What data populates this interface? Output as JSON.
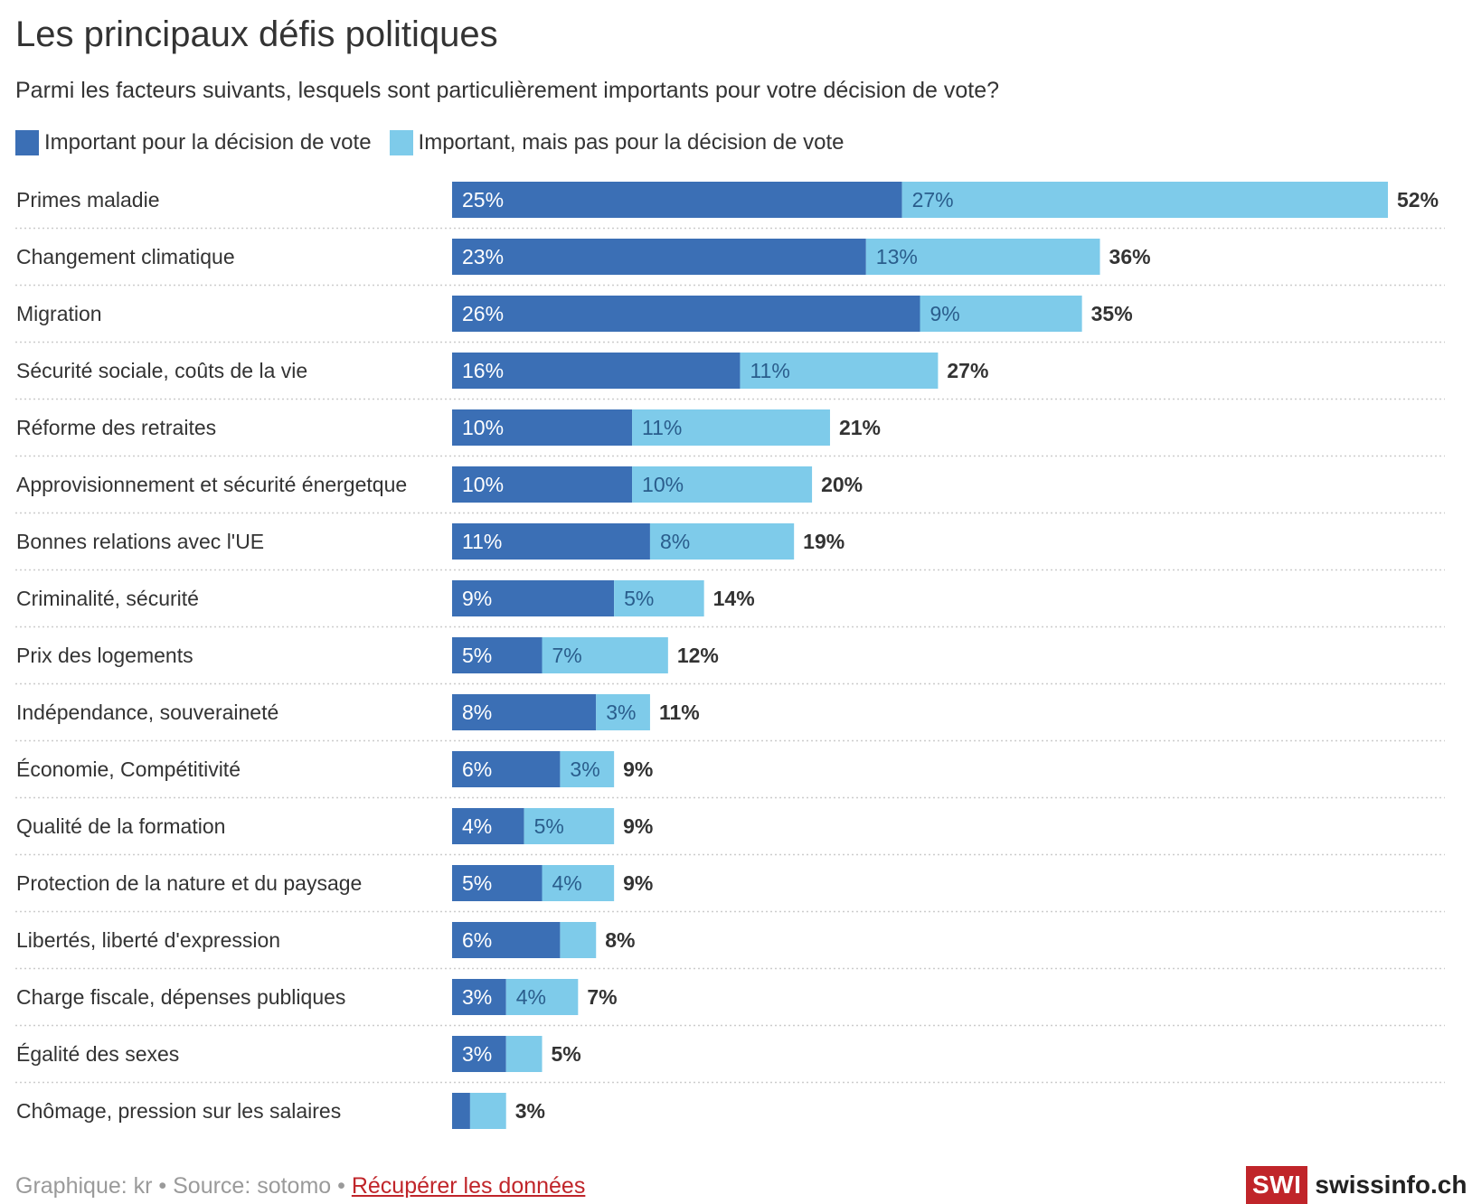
{
  "colors": {
    "primary": "#3b6fb5",
    "secondary": "#7ecbea",
    "grid": "#cccccc"
  },
  "chart_data": {
    "type": "bar",
    "orientation": "horizontal",
    "stacked": true,
    "title": "Les principaux défis politiques",
    "subtitle": "Parmi les facteurs suivants, lesquels sont particulièrement importants pour votre décision de vote?",
    "legend": [
      "Important pour la décision de vote",
      "Important, mais pas pour la décision de vote"
    ],
    "legend_position": "top-left",
    "categories": [
      "Primes maladie",
      "Changement climatique",
      "Migration",
      "Sécurité sociale, coûts de la vie",
      "Réforme des retraites",
      "Approvisionnement et sécurité énergetque",
      "Bonnes relations avec l'UE",
      "Criminalité, sécurité",
      "Prix des logements",
      "Indépendance, souveraineté",
      "Économie, Compétitivité",
      "Qualité de la formation",
      "Protection de la nature et du paysage",
      "Libertés, liberté d'expression",
      "Charge fiscale, dépenses publiques",
      "Égalité des sexes",
      "Chômage, pression sur les salaires"
    ],
    "series": [
      {
        "name": "Important pour la décision de vote",
        "values": [
          25,
          23,
          26,
          16,
          10,
          10,
          11,
          9,
          5,
          8,
          6,
          4,
          5,
          6,
          3,
          3,
          1
        ],
        "labels": [
          "25%",
          "23%",
          "26%",
          "16%",
          "10%",
          "10%",
          "11%",
          "9%",
          "5%",
          "8%",
          "6%",
          "4%",
          "5%",
          "6%",
          "3%",
          "3%",
          ""
        ]
      },
      {
        "name": "Important, mais pas pour la décision de vote",
        "values": [
          27,
          13,
          9,
          11,
          11,
          10,
          8,
          5,
          7,
          3,
          3,
          5,
          4,
          2,
          4,
          2,
          2
        ],
        "labels": [
          "27%",
          "13%",
          "9%",
          "11%",
          "11%",
          "10%",
          "8%",
          "5%",
          "7%",
          "3%",
          "3%",
          "5%",
          "4%",
          "",
          "4%",
          "",
          ""
        ]
      }
    ],
    "totals": [
      "52%",
      "36%",
      "35%",
      "27%",
      "21%",
      "20%",
      "19%",
      "14%",
      "12%",
      "11%",
      "9%",
      "9%",
      "9%",
      "8%",
      "7%",
      "5%",
      "3%"
    ],
    "xlim": [
      0,
      52
    ],
    "grid": false
  },
  "footer": {
    "credit": "Graphique: kr • Source: sotomo • ",
    "link": "Récupérer les données"
  },
  "logo": {
    "box": "SWI",
    "text": "swissinfo.ch"
  }
}
